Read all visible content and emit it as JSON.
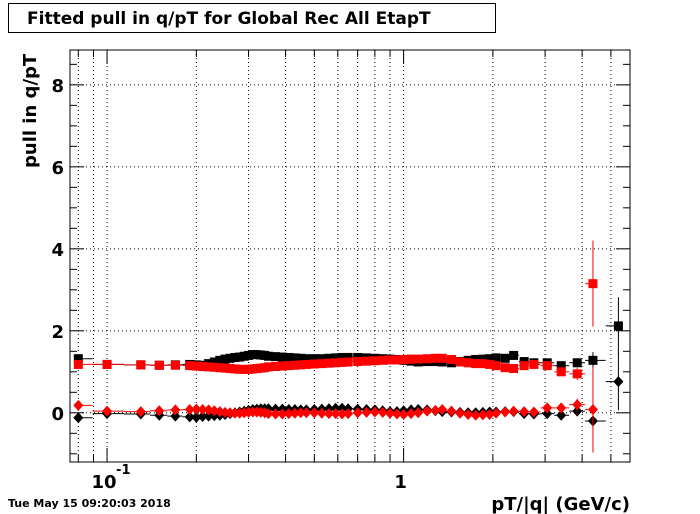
{
  "title": "Fitted pull in q/pT for Global Rec All EtapT",
  "timestamp": "Tue May 15 09:20:03 2018",
  "chart_data": {
    "type": "scatter",
    "title": "Fitted pull in q/pT for Global Rec All EtapT",
    "xlabel": "pT/|q| (GeV/c)",
    "ylabel": "pull in q/pT",
    "xscale": "log",
    "xlim": [
      0.075,
      5.8
    ],
    "ylim": [
      -1.2,
      8.85
    ],
    "grid": true,
    "x_ticks": [
      {
        "value": 0.1,
        "base": "10",
        "exp": "-1"
      },
      {
        "value": 1,
        "base": "1",
        "exp": ""
      }
    ],
    "y_ticks": [
      0,
      2,
      4,
      6,
      8
    ],
    "colors": {
      "black": "#000000",
      "red": "#ff0000"
    },
    "series": [
      {
        "marker": "square",
        "color": "#000000",
        "points": [
          {
            "x": 0.08,
            "y": 1.32,
            "ey": 0.04
          },
          {
            "x": 0.1,
            "y": 1.18,
            "ey": 0.03
          },
          {
            "x": 0.13,
            "y": 1.17
          },
          {
            "x": 0.15,
            "y": 1.16
          },
          {
            "x": 0.17,
            "y": 1.17
          },
          {
            "x": 0.19,
            "y": 1.18
          },
          {
            "x": 0.2,
            "y": 1.17
          },
          {
            "x": 0.21,
            "y": 1.16
          },
          {
            "x": 0.22,
            "y": 1.2
          },
          {
            "x": 0.23,
            "y": 1.24
          },
          {
            "x": 0.24,
            "y": 1.28
          },
          {
            "x": 0.25,
            "y": 1.31
          },
          {
            "x": 0.26,
            "y": 1.33
          },
          {
            "x": 0.27,
            "y": 1.35
          },
          {
            "x": 0.28,
            "y": 1.36
          },
          {
            "x": 0.29,
            "y": 1.38
          },
          {
            "x": 0.3,
            "y": 1.4
          },
          {
            "x": 0.31,
            "y": 1.42
          },
          {
            "x": 0.32,
            "y": 1.42
          },
          {
            "x": 0.33,
            "y": 1.41
          },
          {
            "x": 0.34,
            "y": 1.4
          },
          {
            "x": 0.35,
            "y": 1.38
          },
          {
            "x": 0.37,
            "y": 1.37
          },
          {
            "x": 0.39,
            "y": 1.36
          },
          {
            "x": 0.41,
            "y": 1.35
          },
          {
            "x": 0.43,
            "y": 1.34
          },
          {
            "x": 0.45,
            "y": 1.33
          },
          {
            "x": 0.47,
            "y": 1.32
          },
          {
            "x": 0.5,
            "y": 1.32
          },
          {
            "x": 0.53,
            "y": 1.32
          },
          {
            "x": 0.56,
            "y": 1.33
          },
          {
            "x": 0.59,
            "y": 1.34
          },
          {
            "x": 0.62,
            "y": 1.35
          },
          {
            "x": 0.65,
            "y": 1.35
          },
          {
            "x": 0.7,
            "y": 1.35
          },
          {
            "x": 0.75,
            "y": 1.34
          },
          {
            "x": 0.8,
            "y": 1.33
          },
          {
            "x": 0.85,
            "y": 1.32
          },
          {
            "x": 0.9,
            "y": 1.31
          },
          {
            "x": 0.95,
            "y": 1.3
          },
          {
            "x": 1.0,
            "y": 1.28
          },
          {
            "x": 1.06,
            "y": 1.26
          },
          {
            "x": 1.12,
            "y": 1.24
          },
          {
            "x": 1.2,
            "y": 1.25
          },
          {
            "x": 1.28,
            "y": 1.25
          },
          {
            "x": 1.35,
            "y": 1.24
          },
          {
            "x": 1.45,
            "y": 1.22
          },
          {
            "x": 1.55,
            "y": 1.25
          },
          {
            "x": 1.65,
            "y": 1.28
          },
          {
            "x": 1.75,
            "y": 1.3
          },
          {
            "x": 1.85,
            "y": 1.31
          },
          {
            "x": 1.95,
            "y": 1.32
          },
          {
            "x": 2.05,
            "y": 1.34
          },
          {
            "x": 2.2,
            "y": 1.33
          },
          {
            "x": 2.35,
            "y": 1.4
          },
          {
            "x": 2.55,
            "y": 1.25
          },
          {
            "x": 2.75,
            "y": 1.22
          },
          {
            "x": 3.05,
            "y": 1.22
          },
          {
            "x": 3.4,
            "y": 1.15
          },
          {
            "x": 3.85,
            "y": 1.22,
            "ey": 0.1
          },
          {
            "x": 4.35,
            "y": 1.28,
            "ey": 0.2
          },
          {
            "x": 5.3,
            "y": 2.12,
            "ey": 0.7
          }
        ]
      },
      {
        "marker": "square",
        "color": "#ff0000",
        "points": [
          {
            "x": 0.08,
            "y": 1.18,
            "ey": 0.04
          },
          {
            "x": 0.1,
            "y": 1.18,
            "ey": 0.03
          },
          {
            "x": 0.13,
            "y": 1.17
          },
          {
            "x": 0.15,
            "y": 1.16
          },
          {
            "x": 0.17,
            "y": 1.16
          },
          {
            "x": 0.19,
            "y": 1.15
          },
          {
            "x": 0.2,
            "y": 1.14
          },
          {
            "x": 0.21,
            "y": 1.13
          },
          {
            "x": 0.22,
            "y": 1.12
          },
          {
            "x": 0.23,
            "y": 1.11
          },
          {
            "x": 0.24,
            "y": 1.1
          },
          {
            "x": 0.25,
            "y": 1.09
          },
          {
            "x": 0.26,
            "y": 1.08
          },
          {
            "x": 0.27,
            "y": 1.07
          },
          {
            "x": 0.28,
            "y": 1.06
          },
          {
            "x": 0.29,
            "y": 1.06
          },
          {
            "x": 0.3,
            "y": 1.06
          },
          {
            "x": 0.31,
            "y": 1.07
          },
          {
            "x": 0.32,
            "y": 1.08
          },
          {
            "x": 0.33,
            "y": 1.09
          },
          {
            "x": 0.34,
            "y": 1.1
          },
          {
            "x": 0.35,
            "y": 1.12
          },
          {
            "x": 0.37,
            "y": 1.13
          },
          {
            "x": 0.39,
            "y": 1.14
          },
          {
            "x": 0.41,
            "y": 1.15
          },
          {
            "x": 0.43,
            "y": 1.16
          },
          {
            "x": 0.45,
            "y": 1.17
          },
          {
            "x": 0.47,
            "y": 1.18
          },
          {
            "x": 0.5,
            "y": 1.19
          },
          {
            "x": 0.53,
            "y": 1.2
          },
          {
            "x": 0.56,
            "y": 1.21
          },
          {
            "x": 0.59,
            "y": 1.22
          },
          {
            "x": 0.62,
            "y": 1.23
          },
          {
            "x": 0.65,
            "y": 1.24
          },
          {
            "x": 0.7,
            "y": 1.25
          },
          {
            "x": 0.75,
            "y": 1.26
          },
          {
            "x": 0.8,
            "y": 1.27
          },
          {
            "x": 0.85,
            "y": 1.28
          },
          {
            "x": 0.9,
            "y": 1.29
          },
          {
            "x": 0.95,
            "y": 1.29
          },
          {
            "x": 1.0,
            "y": 1.3
          },
          {
            "x": 1.06,
            "y": 1.31
          },
          {
            "x": 1.12,
            "y": 1.31
          },
          {
            "x": 1.2,
            "y": 1.32
          },
          {
            "x": 1.28,
            "y": 1.33
          },
          {
            "x": 1.35,
            "y": 1.33
          },
          {
            "x": 1.45,
            "y": 1.3
          },
          {
            "x": 1.55,
            "y": 1.24
          },
          {
            "x": 1.65,
            "y": 1.22
          },
          {
            "x": 1.75,
            "y": 1.2
          },
          {
            "x": 1.85,
            "y": 1.2
          },
          {
            "x": 1.95,
            "y": 1.18
          },
          {
            "x": 2.05,
            "y": 1.15
          },
          {
            "x": 2.2,
            "y": 1.1
          },
          {
            "x": 2.35,
            "y": 1.08
          },
          {
            "x": 2.55,
            "y": 1.15
          },
          {
            "x": 2.75,
            "y": 1.18
          },
          {
            "x": 3.05,
            "y": 1.15
          },
          {
            "x": 3.4,
            "y": 1.0,
            "ey": 0.1
          },
          {
            "x": 3.85,
            "y": 0.95,
            "ey": 0.15
          },
          {
            "x": 4.35,
            "y": 3.15,
            "ey": 1.05
          }
        ]
      },
      {
        "marker": "diamond",
        "color": "#000000",
        "points": [
          {
            "x": 0.08,
            "y": -0.12,
            "ey": 0.04
          },
          {
            "x": 0.1,
            "y": -0.02,
            "ey": 0.03
          },
          {
            "x": 0.13,
            "y": -0.03
          },
          {
            "x": 0.15,
            "y": -0.06
          },
          {
            "x": 0.17,
            "y": -0.08
          },
          {
            "x": 0.19,
            "y": -0.1
          },
          {
            "x": 0.2,
            "y": -0.11
          },
          {
            "x": 0.21,
            "y": -0.09
          },
          {
            "x": 0.22,
            "y": -0.08
          },
          {
            "x": 0.23,
            "y": -0.07
          },
          {
            "x": 0.24,
            "y": -0.06
          },
          {
            "x": 0.25,
            "y": -0.04
          },
          {
            "x": 0.26,
            "y": -0.02
          },
          {
            "x": 0.27,
            "y": 0.0
          },
          {
            "x": 0.28,
            "y": 0.02
          },
          {
            "x": 0.29,
            "y": 0.04
          },
          {
            "x": 0.3,
            "y": 0.06
          },
          {
            "x": 0.31,
            "y": 0.08
          },
          {
            "x": 0.32,
            "y": 0.09
          },
          {
            "x": 0.33,
            "y": 0.1
          },
          {
            "x": 0.34,
            "y": 0.1
          },
          {
            "x": 0.35,
            "y": 0.1
          },
          {
            "x": 0.37,
            "y": 0.09
          },
          {
            "x": 0.39,
            "y": 0.09
          },
          {
            "x": 0.41,
            "y": 0.08
          },
          {
            "x": 0.43,
            "y": 0.08
          },
          {
            "x": 0.45,
            "y": 0.07
          },
          {
            "x": 0.47,
            "y": 0.07
          },
          {
            "x": 0.5,
            "y": 0.08
          },
          {
            "x": 0.53,
            "y": 0.09
          },
          {
            "x": 0.56,
            "y": 0.1
          },
          {
            "x": 0.59,
            "y": 0.11
          },
          {
            "x": 0.62,
            "y": 0.11
          },
          {
            "x": 0.65,
            "y": 0.1
          },
          {
            "x": 0.7,
            "y": 0.09
          },
          {
            "x": 0.75,
            "y": 0.08
          },
          {
            "x": 0.8,
            "y": 0.07
          },
          {
            "x": 0.85,
            "y": 0.05
          },
          {
            "x": 0.9,
            "y": 0.03
          },
          {
            "x": 0.95,
            "y": 0.03
          },
          {
            "x": 1.0,
            "y": 0.05
          },
          {
            "x": 1.06,
            "y": 0.07
          },
          {
            "x": 1.12,
            "y": 0.08
          },
          {
            "x": 1.2,
            "y": 0.07
          },
          {
            "x": 1.28,
            "y": 0.05
          },
          {
            "x": 1.35,
            "y": 0.03
          },
          {
            "x": 1.45,
            "y": 0.02
          },
          {
            "x": 1.55,
            "y": 0.01
          },
          {
            "x": 1.65,
            "y": 0.0
          },
          {
            "x": 1.75,
            "y": 0.0
          },
          {
            "x": 1.85,
            "y": 0.01
          },
          {
            "x": 1.95,
            "y": 0.02
          },
          {
            "x": 2.05,
            "y": 0.02
          },
          {
            "x": 2.2,
            "y": 0.03
          },
          {
            "x": 2.35,
            "y": 0.03
          },
          {
            "x": 2.55,
            "y": -0.02
          },
          {
            "x": 2.75,
            "y": -0.03
          },
          {
            "x": 3.05,
            "y": -0.02
          },
          {
            "x": 3.4,
            "y": -0.06
          },
          {
            "x": 3.85,
            "y": 0.04,
            "ey": 0.1
          },
          {
            "x": 4.35,
            "y": -0.2,
            "ey": 0.2
          },
          {
            "x": 5.3,
            "y": 0.76,
            "ey": 0.7
          }
        ]
      },
      {
        "marker": "diamond",
        "color": "#ff0000",
        "points": [
          {
            "x": 0.08,
            "y": 0.18,
            "ey": 0.04
          },
          {
            "x": 0.1,
            "y": 0.04,
            "ey": 0.03
          },
          {
            "x": 0.13,
            "y": 0.03
          },
          {
            "x": 0.15,
            "y": 0.05
          },
          {
            "x": 0.17,
            "y": 0.07
          },
          {
            "x": 0.19,
            "y": 0.08
          },
          {
            "x": 0.2,
            "y": 0.09
          },
          {
            "x": 0.21,
            "y": 0.08
          },
          {
            "x": 0.22,
            "y": 0.07
          },
          {
            "x": 0.23,
            "y": 0.05
          },
          {
            "x": 0.24,
            "y": 0.03
          },
          {
            "x": 0.25,
            "y": 0.01
          },
          {
            "x": 0.26,
            "y": 0.0
          },
          {
            "x": 0.27,
            "y": -0.01
          },
          {
            "x": 0.28,
            "y": -0.01
          },
          {
            "x": 0.29,
            "y": 0.0
          },
          {
            "x": 0.3,
            "y": 0.01
          },
          {
            "x": 0.31,
            "y": 0.02
          },
          {
            "x": 0.32,
            "y": 0.02
          },
          {
            "x": 0.33,
            "y": 0.01
          },
          {
            "x": 0.34,
            "y": 0.0
          },
          {
            "x": 0.35,
            "y": -0.02
          },
          {
            "x": 0.37,
            "y": -0.03
          },
          {
            "x": 0.39,
            "y": -0.03
          },
          {
            "x": 0.41,
            "y": -0.02
          },
          {
            "x": 0.43,
            "y": -0.01
          },
          {
            "x": 0.45,
            "y": 0.0
          },
          {
            "x": 0.47,
            "y": 0.0
          },
          {
            "x": 0.5,
            "y": 0.0
          },
          {
            "x": 0.53,
            "y": -0.01
          },
          {
            "x": 0.56,
            "y": -0.02
          },
          {
            "x": 0.59,
            "y": -0.02
          },
          {
            "x": 0.62,
            "y": -0.03
          },
          {
            "x": 0.65,
            "y": -0.02
          },
          {
            "x": 0.7,
            "y": 0.0
          },
          {
            "x": 0.75,
            "y": 0.01
          },
          {
            "x": 0.8,
            "y": 0.02
          },
          {
            "x": 0.85,
            "y": 0.01
          },
          {
            "x": 0.9,
            "y": -0.01
          },
          {
            "x": 0.95,
            "y": -0.03
          },
          {
            "x": 1.0,
            "y": -0.04
          },
          {
            "x": 1.06,
            "y": -0.02
          },
          {
            "x": 1.12,
            "y": 0.0
          },
          {
            "x": 1.2,
            "y": 0.04
          },
          {
            "x": 1.28,
            "y": 0.06
          },
          {
            "x": 1.35,
            "y": 0.08
          },
          {
            "x": 1.45,
            "y": 0.04
          },
          {
            "x": 1.55,
            "y": -0.01
          },
          {
            "x": 1.65,
            "y": -0.04
          },
          {
            "x": 1.75,
            "y": -0.06
          },
          {
            "x": 1.85,
            "y": -0.05
          },
          {
            "x": 1.95,
            "y": -0.04
          },
          {
            "x": 2.05,
            "y": -0.01
          },
          {
            "x": 2.2,
            "y": 0.02
          },
          {
            "x": 2.35,
            "y": 0.04
          },
          {
            "x": 2.55,
            "y": 0.03
          },
          {
            "x": 2.75,
            "y": 0.02
          },
          {
            "x": 3.05,
            "y": 0.12
          },
          {
            "x": 3.4,
            "y": 0.12,
            "ey": 0.1
          },
          {
            "x": 3.85,
            "y": 0.2,
            "ey": 0.15
          },
          {
            "x": 4.35,
            "y": 0.08,
            "ey": 1.05
          }
        ]
      }
    ]
  }
}
